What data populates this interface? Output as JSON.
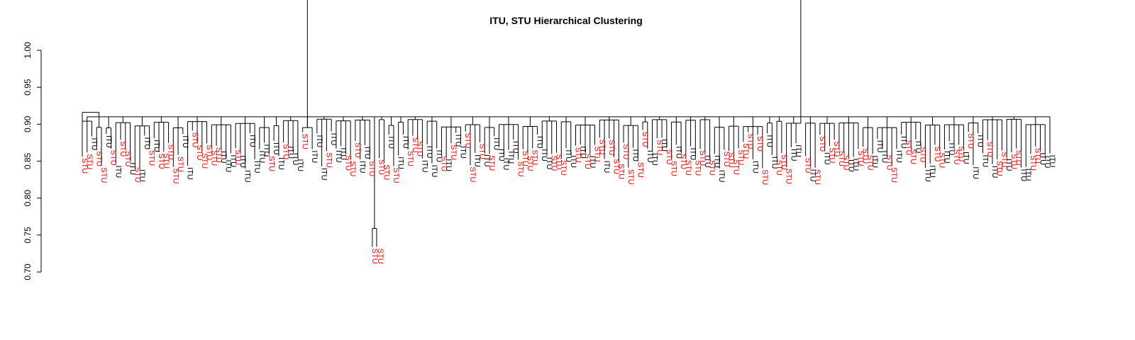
{
  "chart_data": {
    "type": "dendrogram",
    "title": "ITU, STU Hierarchical Clustering",
    "xlabel": "",
    "ylabel": "",
    "ylim": [
      0.7,
      1.0
    ],
    "y_ticks": [
      "0.70",
      "0.75",
      "0.80",
      "0.85",
      "0.90",
      "0.95",
      "1.00"
    ],
    "y_tick_values": [
      0.7,
      0.75,
      0.8,
      0.85,
      0.9,
      0.95,
      1.0
    ],
    "grid": false,
    "legend": "none",
    "leaf_classes": [
      "ITU",
      "STU"
    ],
    "colors": {
      "ITU": "#000000",
      "STU": "#ff0000",
      "branch": "#000000"
    },
    "root_height": 0.916,
    "main_cluster_height": 0.91,
    "typical_leaf_height_range": [
      0.84,
      0.89
    ],
    "outlier_groups": [
      {
        "labels": [
          "STU",
          "STU"
        ],
        "merge_height": 0.765,
        "join_height": 0.911
      },
      {
        "labels": [
          "STU",
          "STU"
        ],
        "merge_height": 0.759,
        "join_height": 0.895
      },
      {
        "labels": [
          "ITU",
          "STU"
        ],
        "merge_height": 0.761,
        "join_height": 0.873
      }
    ]
  }
}
